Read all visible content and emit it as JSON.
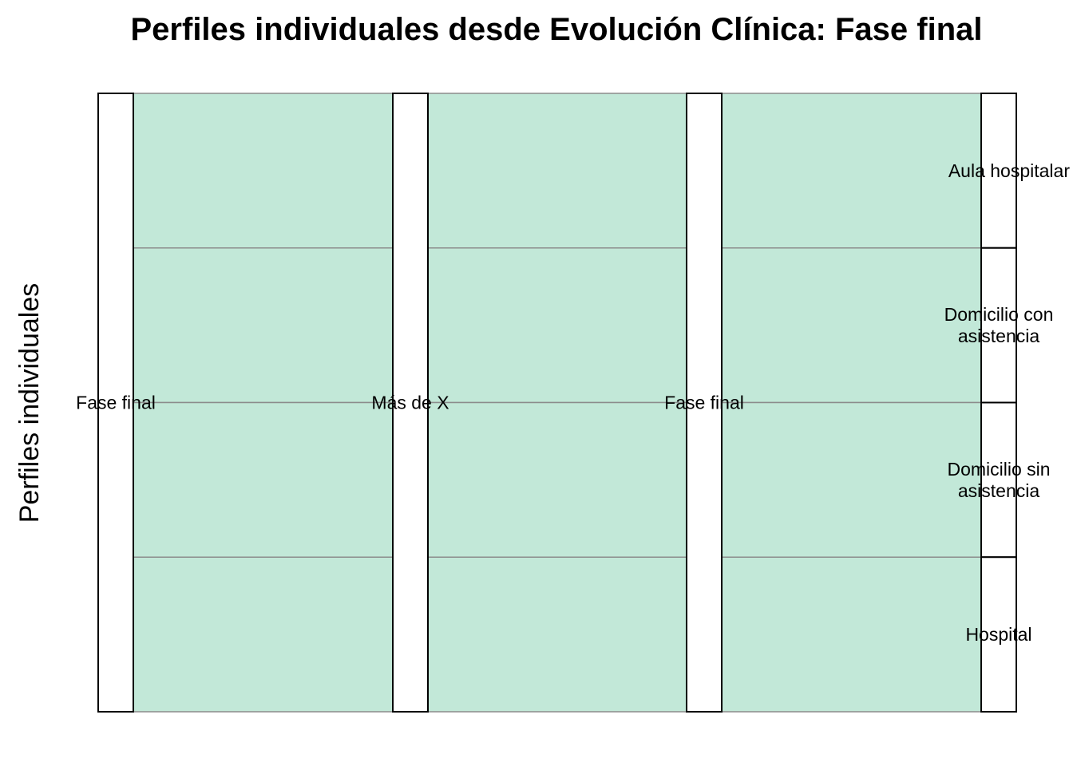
{
  "chart_data": {
    "type": "alluvial",
    "title": "Perfiles individuales desde Evolución Clínica: Fase final",
    "xlabel": "",
    "ylabel": "Perfiles individuales",
    "flow_color": "#c2e8d8",
    "axes": [
      {
        "strata": [
          {
            "label": "Fase final",
            "value": 4
          }
        ]
      },
      {
        "strata": [
          {
            "label": "Más de X",
            "value": 4
          }
        ]
      },
      {
        "strata": [
          {
            "label": "Fase final",
            "value": 4
          }
        ]
      },
      {
        "strata": [
          {
            "label": "Aula hospitalar",
            "value": 1
          },
          {
            "label": "Domicilio con\nasistencia",
            "value": 1
          },
          {
            "label": "Domicilio sin\nasistencia",
            "value": 1
          },
          {
            "label": "Hospital",
            "value": 1
          }
        ]
      }
    ],
    "flows": [
      {
        "path": [
          0,
          0,
          0,
          0
        ],
        "value": 1
      },
      {
        "path": [
          0,
          0,
          0,
          1
        ],
        "value": 1
      },
      {
        "path": [
          0,
          0,
          0,
          2
        ],
        "value": 1
      },
      {
        "path": [
          0,
          0,
          0,
          3
        ],
        "value": 1
      }
    ]
  }
}
